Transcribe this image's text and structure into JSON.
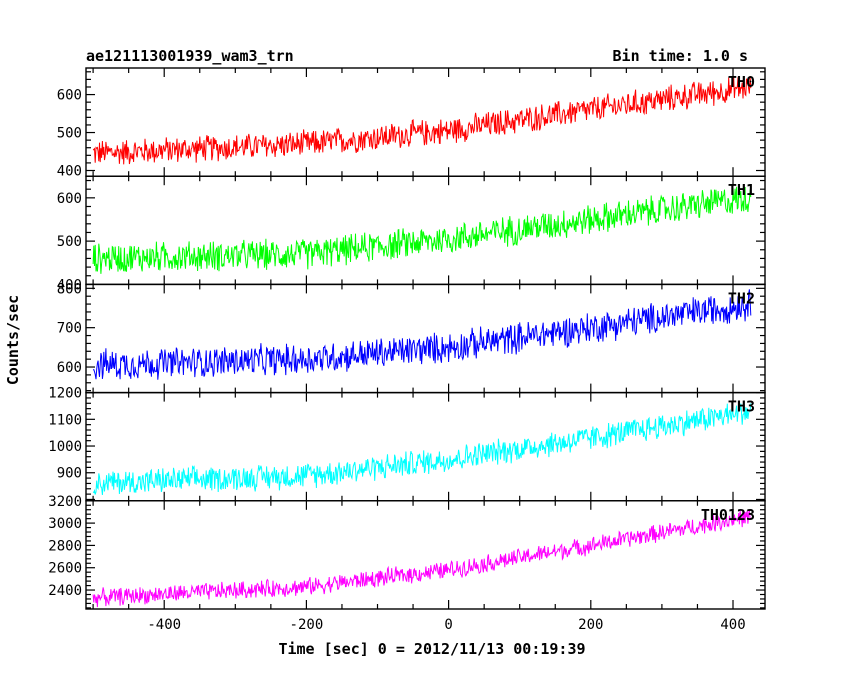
{
  "chart_data": {
    "type": "line",
    "title": "ae121113001939_wam3_trn",
    "subtitle": "Bin time: 1.0 s",
    "xlabel": "Time [sec] 0 = 2012/11/13 00:19:39",
    "ylabel": "Counts/sec",
    "xlim": [
      -510,
      445
    ],
    "xticks": [
      -400,
      -200,
      0,
      200,
      400
    ],
    "x_range": [
      -500,
      425
    ],
    "grid": false,
    "panels": [
      {
        "name": "TH0",
        "color": "#ff0000",
        "ylim": [
          385,
          670
        ],
        "yticks": [
          400,
          500,
          600
        ],
        "trend": [
          {
            "x": -500,
            "y": 445
          },
          {
            "x": -200,
            "y": 470
          },
          {
            "x": 0,
            "y": 505
          },
          {
            "x": 200,
            "y": 560
          },
          {
            "x": 425,
            "y": 620
          }
        ],
        "noise_amp": 40
      },
      {
        "name": "TH1",
        "color": "#00ff00",
        "ylim": [
          400,
          650
        ],
        "yticks": [
          400,
          500,
          600
        ],
        "trend": [
          {
            "x": -500,
            "y": 460
          },
          {
            "x": -200,
            "y": 470
          },
          {
            "x": 0,
            "y": 505
          },
          {
            "x": 200,
            "y": 550
          },
          {
            "x": 425,
            "y": 600
          }
        ],
        "noise_amp": 40
      },
      {
        "name": "TH2",
        "color": "#0000ff",
        "ylim": [
          535,
          810
        ],
        "yticks": [
          600,
          700,
          800
        ],
        "trend": [
          {
            "x": -500,
            "y": 605
          },
          {
            "x": -200,
            "y": 620
          },
          {
            "x": 0,
            "y": 650
          },
          {
            "x": 200,
            "y": 700
          },
          {
            "x": 425,
            "y": 760
          }
        ],
        "noise_amp": 45
      },
      {
        "name": "TH3",
        "color": "#00ffff",
        "ylim": [
          795,
          1200
        ],
        "yticks": [
          900,
          1000,
          1100,
          1200
        ],
        "trend": [
          {
            "x": -500,
            "y": 860
          },
          {
            "x": -200,
            "y": 890
          },
          {
            "x": 0,
            "y": 950
          },
          {
            "x": 200,
            "y": 1030
          },
          {
            "x": 425,
            "y": 1130
          }
        ],
        "noise_amp": 55
      },
      {
        "name": "TH0123",
        "color": "#ff00ff",
        "ylim": [
          2230,
          3200
        ],
        "yticks": [
          2400,
          2600,
          2800,
          3000,
          3200
        ],
        "trend": [
          {
            "x": -500,
            "y": 2330
          },
          {
            "x": -200,
            "y": 2430
          },
          {
            "x": 0,
            "y": 2580
          },
          {
            "x": 200,
            "y": 2800
          },
          {
            "x": 425,
            "y": 3060
          }
        ],
        "noise_amp": 90
      }
    ]
  }
}
